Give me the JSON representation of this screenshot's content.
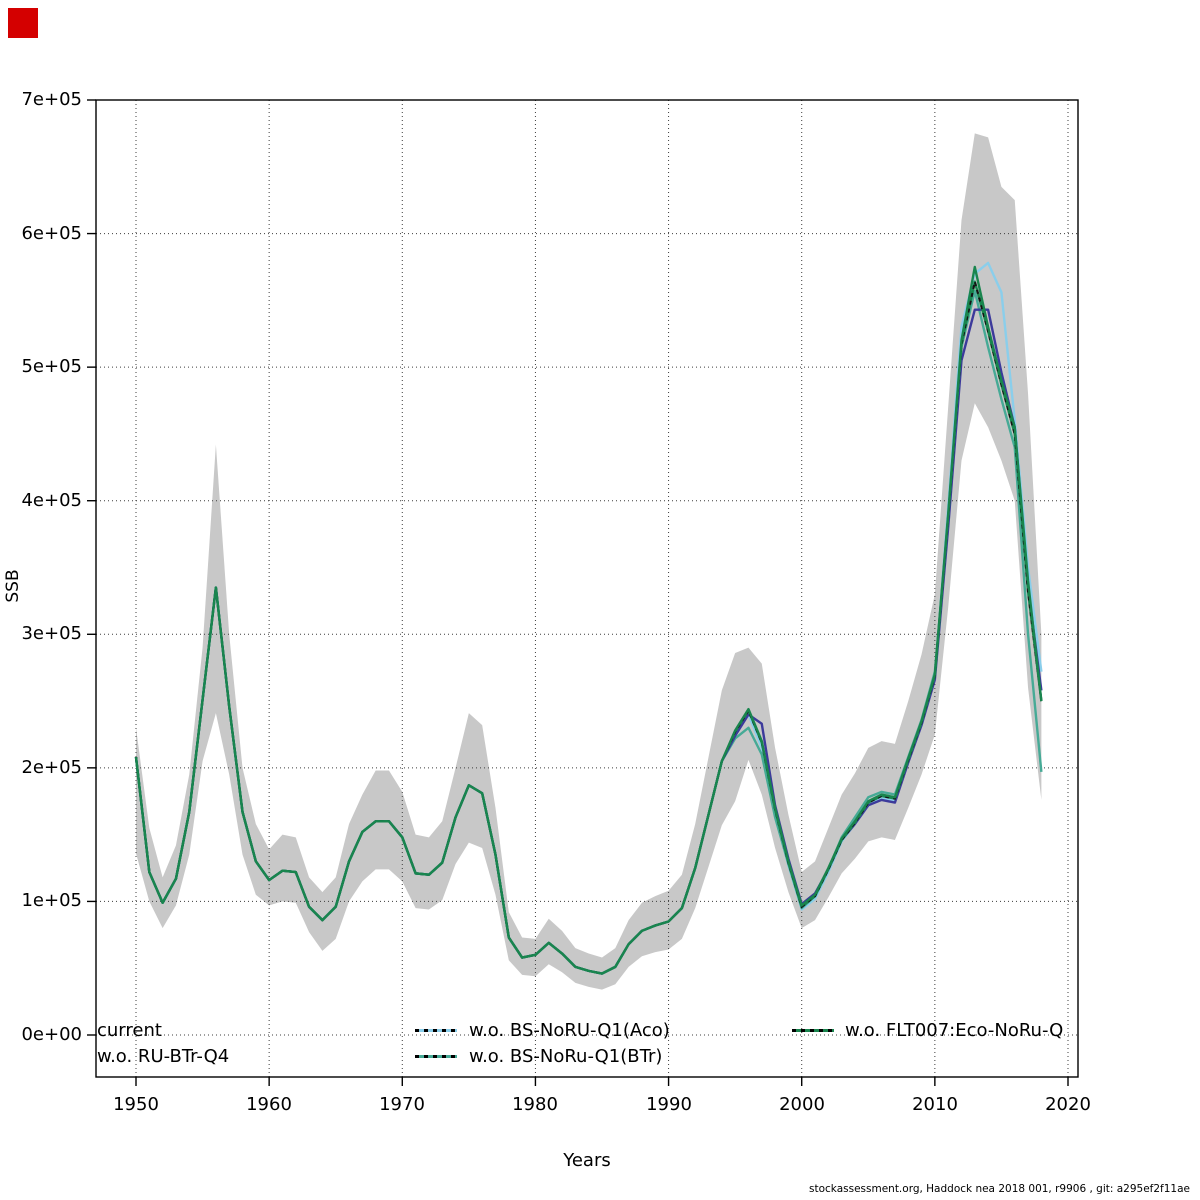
{
  "corner_marker": {
    "color": "#d40000"
  },
  "footer": {
    "text": "stockassessment.org, Haddock nea 2018 001, r9906 , git: a295ef2f11ae"
  },
  "axes": {
    "xlabel": "Years",
    "ylabel": "SSB",
    "x_tick_labels": [
      "1950",
      "1960",
      "1970",
      "1980",
      "1990",
      "2000",
      "2010",
      "2020"
    ],
    "y_tick_labels": [
      "0e+00",
      "1e+05",
      "2e+05",
      "3e+05",
      "4e+05",
      "5e+05",
      "6e+05",
      "7e+05"
    ]
  },
  "legend": {
    "entries": [
      {
        "label": "current",
        "color": "#19854e",
        "dashed": false,
        "swatch_visible": false
      },
      {
        "label": "w.o. RU-BTr-Q4",
        "color": "#3c3a9b",
        "dashed": false,
        "swatch_visible": false
      },
      {
        "label": "w.o. BS-NoRU-Q1(Aco)",
        "color": "#8aceeb",
        "dashed": true,
        "swatch_visible": true
      },
      {
        "label": "w.o. BS-NoRu-Q1(BTr)",
        "color": "#46aa96",
        "dashed": true,
        "swatch_visible": true
      },
      {
        "label": "w.o. FLT007:Eco-NoRu-Q",
        "color": "#19854e",
        "dashed": true,
        "swatch_visible": true
      }
    ]
  },
  "chart_data": {
    "type": "line",
    "title": "",
    "xlabel": "Years",
    "ylabel": "SSB",
    "xlim": [
      1947,
      2020.8
    ],
    "ylim": [
      0,
      700000
    ],
    "grid": true,
    "x_ticks": [
      1950,
      1960,
      1970,
      1980,
      1990,
      2000,
      2010,
      2020
    ],
    "y_ticks": [
      0,
      100000,
      200000,
      300000,
      400000,
      500000,
      600000,
      700000
    ],
    "band_color": "#c8c8c8",
    "grid_color": "#3c3c3c",
    "years": [
      1950,
      1951,
      1952,
      1953,
      1954,
      1955,
      1956,
      1957,
      1958,
      1959,
      1960,
      1961,
      1962,
      1963,
      1964,
      1965,
      1966,
      1967,
      1968,
      1969,
      1970,
      1971,
      1972,
      1973,
      1974,
      1975,
      1976,
      1977,
      1978,
      1979,
      1980,
      1981,
      1982,
      1983,
      1984,
      1985,
      1986,
      1987,
      1988,
      1989,
      1990,
      1991,
      1992,
      1993,
      1994,
      1995,
      1996,
      1997,
      1998,
      1999,
      2000,
      2001,
      2002,
      2003,
      2004,
      2005,
      2006,
      2007,
      2008,
      2009,
      2010,
      2011,
      2012,
      2013,
      2014,
      2015,
      2016,
      2017,
      2018
    ],
    "band": {
      "name": "current-confidence-band",
      "lower": [
        136000,
        100000,
        80000,
        97000,
        135000,
        205000,
        241000,
        195000,
        135000,
        105000,
        97000,
        100000,
        99000,
        77000,
        63000,
        72000,
        100000,
        115000,
        124000,
        124000,
        115000,
        95000,
        94000,
        101000,
        128000,
        144000,
        140000,
        105000,
        56000,
        45000,
        44000,
        53000,
        47000,
        39000,
        36000,
        34000,
        38000,
        51000,
        59000,
        62000,
        64000,
        72000,
        95000,
        126000,
        157000,
        175000,
        206000,
        180000,
        140000,
        107000,
        80000,
        86000,
        103000,
        121000,
        132000,
        145000,
        148000,
        146000,
        170000,
        195000,
        225000,
        320000,
        430000,
        473000,
        455000,
        430000,
        400000,
        260000,
        176000
      ],
      "upper": [
        230000,
        155000,
        118000,
        142000,
        195000,
        290000,
        442000,
        300000,
        200000,
        158000,
        139000,
        150000,
        148000,
        118000,
        107000,
        118000,
        158000,
        180000,
        198000,
        198000,
        182000,
        150000,
        148000,
        160000,
        200000,
        241000,
        232000,
        170000,
        92000,
        73000,
        72000,
        87000,
        78000,
        65000,
        61000,
        58000,
        65000,
        86000,
        99000,
        104000,
        108000,
        120000,
        158000,
        208000,
        258000,
        286000,
        290000,
        278000,
        215000,
        165000,
        122000,
        130000,
        155000,
        180000,
        196000,
        215000,
        220000,
        218000,
        250000,
        285000,
        330000,
        470000,
        610000,
        675000,
        672000,
        635000,
        625000,
        480000,
        300000
      ]
    },
    "series": [
      {
        "name": "w.o. BS-NoRU-Q1(Aco)",
        "color": "#8aceeb",
        "overlay": "none",
        "values": [
          208000,
          122000,
          99000,
          117000,
          167000,
          251000,
          335000,
          246000,
          167000,
          130000,
          116000,
          123000,
          122000,
          96000,
          86000,
          96000,
          130000,
          152000,
          160000,
          160000,
          148000,
          121000,
          120000,
          129000,
          163000,
          187000,
          181000,
          135000,
          73000,
          58000,
          60000,
          69000,
          61000,
          51000,
          48000,
          46000,
          51000,
          68000,
          78000,
          82000,
          85000,
          95000,
          125000,
          165000,
          205000,
          225000,
          240000,
          215000,
          165000,
          127000,
          94000,
          102000,
          122000,
          145000,
          158000,
          172000,
          177000,
          176000,
          205000,
          232000,
          268000,
          395000,
          530000,
          570000,
          578000,
          556000,
          460000,
          350000,
          272000
        ]
      },
      {
        "name": "w.o. BS-NoRu-Q1(BTr)",
        "color": "#46aa96",
        "overlay": "none",
        "values": [
          208000,
          122000,
          99000,
          117000,
          167000,
          251000,
          335000,
          246000,
          167000,
          130000,
          116000,
          123000,
          122000,
          96000,
          86000,
          96000,
          130000,
          152000,
          160000,
          160000,
          148000,
          121000,
          120000,
          129000,
          163000,
          187000,
          181000,
          135000,
          73000,
          58000,
          60000,
          69000,
          61000,
          51000,
          48000,
          46000,
          51000,
          68000,
          78000,
          82000,
          85000,
          95000,
          125000,
          165000,
          205000,
          222000,
          230000,
          210000,
          163000,
          128000,
          95000,
          104000,
          124000,
          148000,
          163000,
          178000,
          182000,
          180000,
          208000,
          236000,
          272000,
          385000,
          515000,
          557000,
          515000,
          476000,
          440000,
          300000,
          197000
        ]
      },
      {
        "name": "w.o. RU-BTr-Q4",
        "color": "#3c3a9b",
        "overlay": "none",
        "values": [
          208000,
          122000,
          99000,
          117000,
          167000,
          251000,
          335000,
          246000,
          167000,
          130000,
          116000,
          123000,
          122000,
          96000,
          86000,
          96000,
          130000,
          152000,
          160000,
          160000,
          148000,
          121000,
          120000,
          129000,
          163000,
          187000,
          181000,
          135000,
          73000,
          58000,
          60000,
          69000,
          61000,
          51000,
          48000,
          46000,
          51000,
          68000,
          78000,
          82000,
          85000,
          95000,
          125000,
          165000,
          205000,
          224000,
          240000,
          233000,
          172000,
          132000,
          98000,
          106000,
          124000,
          146000,
          158000,
          172000,
          176000,
          174000,
          204000,
          232000,
          266000,
          380000,
          505000,
          543000,
          543000,
          496000,
          455000,
          335000,
          258000
        ]
      },
      {
        "name": "w.o. FLT007:Eco-NoRu-Q",
        "color": "#19854e",
        "overlay": "black-dashed",
        "values": [
          208000,
          122000,
          99000,
          117000,
          167000,
          251000,
          335000,
          246000,
          167000,
          130000,
          116000,
          123000,
          122000,
          96000,
          86000,
          96000,
          130000,
          152000,
          160000,
          160000,
          148000,
          121000,
          120000,
          129000,
          163000,
          187000,
          181000,
          135000,
          73000,
          58000,
          60000,
          69000,
          61000,
          51000,
          48000,
          46000,
          51000,
          68000,
          78000,
          82000,
          85000,
          95000,
          125000,
          165000,
          205000,
          227000,
          243000,
          219000,
          169000,
          129000,
          96000,
          104000,
          124000,
          146000,
          159000,
          174000,
          179000,
          177000,
          206000,
          234000,
          269000,
          388000,
          517000,
          564000,
          527000,
          487000,
          450000,
          332000,
          250000
        ]
      },
      {
        "name": "current",
        "color": "#19854e",
        "overlay": "none",
        "values": [
          208000,
          122000,
          99000,
          117000,
          167000,
          251000,
          335000,
          246000,
          167000,
          130000,
          116000,
          123000,
          122000,
          96000,
          86000,
          96000,
          130000,
          152000,
          160000,
          160000,
          148000,
          121000,
          120000,
          129000,
          163000,
          187000,
          181000,
          135000,
          73000,
          58000,
          60000,
          69000,
          61000,
          51000,
          48000,
          46000,
          51000,
          68000,
          78000,
          82000,
          85000,
          95000,
          125000,
          165000,
          205000,
          228000,
          244000,
          220000,
          170000,
          130000,
          97000,
          105000,
          125000,
          147000,
          160000,
          175000,
          180000,
          178000,
          207000,
          235000,
          270000,
          390000,
          520000,
          575000,
          530000,
          490000,
          455000,
          340000,
          250000
        ]
      }
    ]
  }
}
